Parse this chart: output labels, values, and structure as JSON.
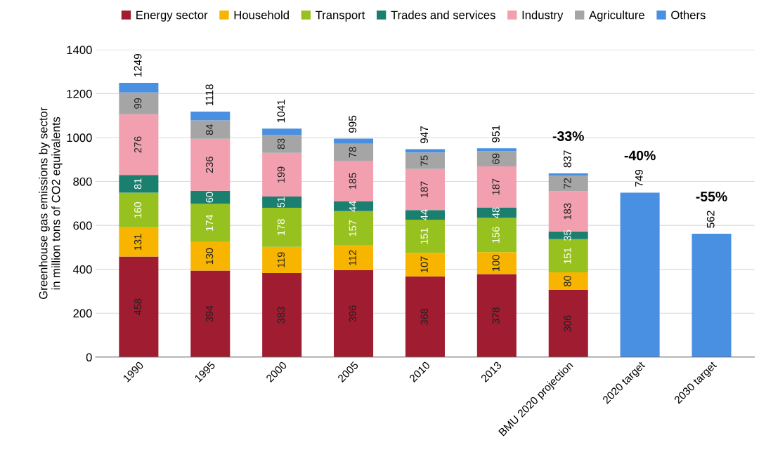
{
  "chart_data": {
    "type": "bar",
    "stacked": true,
    "ylabel": "Greenhouse gas emissions by sector\nin million tons of CO2 equivalents",
    "categories": [
      "1990",
      "1995",
      "2000",
      "2005",
      "2010",
      "2013",
      "BMU 2020 projection",
      "2020 target",
      "2030 target"
    ],
    "series": [
      {
        "name": "Energy sector",
        "color": "#a01c30",
        "values": [
          458,
          394,
          383,
          396,
          368,
          378,
          306,
          null,
          null
        ],
        "value_labels": [
          "458",
          "394",
          "383",
          "396",
          "368",
          "378",
          "306",
          null,
          null
        ]
      },
      {
        "name": "Household",
        "color": "#f7b500",
        "values": [
          131,
          130,
          119,
          112,
          107,
          100,
          80,
          null,
          null
        ],
        "value_labels": [
          "131",
          "130",
          "119",
          "112",
          "107",
          "100",
          "80",
          null,
          null
        ]
      },
      {
        "name": "Transport",
        "color": "#97c11f",
        "values": [
          160,
          174,
          178,
          157,
          151,
          156,
          151,
          null,
          null
        ],
        "value_labels": [
          "160",
          "174",
          "178",
          "157",
          "151",
          "156",
          "151",
          null,
          null
        ]
      },
      {
        "name": "Trades and services",
        "color": "#1a7f6e",
        "values": [
          81,
          60,
          51,
          44,
          44,
          48,
          35,
          null,
          null
        ],
        "value_labels": [
          "81",
          "60",
          "51",
          "44",
          "44",
          "48",
          "35",
          null,
          null
        ]
      },
      {
        "name": "Industry",
        "color": "#f2a0b0",
        "values": [
          276,
          236,
          199,
          185,
          187,
          187,
          183,
          null,
          null
        ],
        "value_labels": [
          "276",
          "236",
          "199",
          "185",
          "187",
          "187",
          "183",
          null,
          null
        ]
      },
      {
        "name": "Agriculture",
        "color": "#a5a5a5",
        "values": [
          99,
          84,
          83,
          78,
          75,
          69,
          72,
          null,
          null
        ],
        "value_labels": [
          "99",
          "84",
          "83",
          "78",
          "75",
          "69",
          "72",
          null,
          null
        ]
      },
      {
        "name": "Others",
        "color": "#4a90e2",
        "values": [
          44,
          40,
          28,
          23,
          15,
          13,
          10,
          749,
          562
        ]
      }
    ],
    "totals": [
      "1249",
      "1118",
      "1041",
      "995",
      "947",
      "951",
      "837",
      "749",
      "562"
    ],
    "annotations": [
      "-33%",
      "-40%",
      "-55%"
    ],
    "ylim": [
      0,
      1400
    ],
    "yticks": [
      0,
      200,
      400,
      600,
      800,
      1000,
      1200,
      1400
    ],
    "grid": "y",
    "legend": "top"
  }
}
